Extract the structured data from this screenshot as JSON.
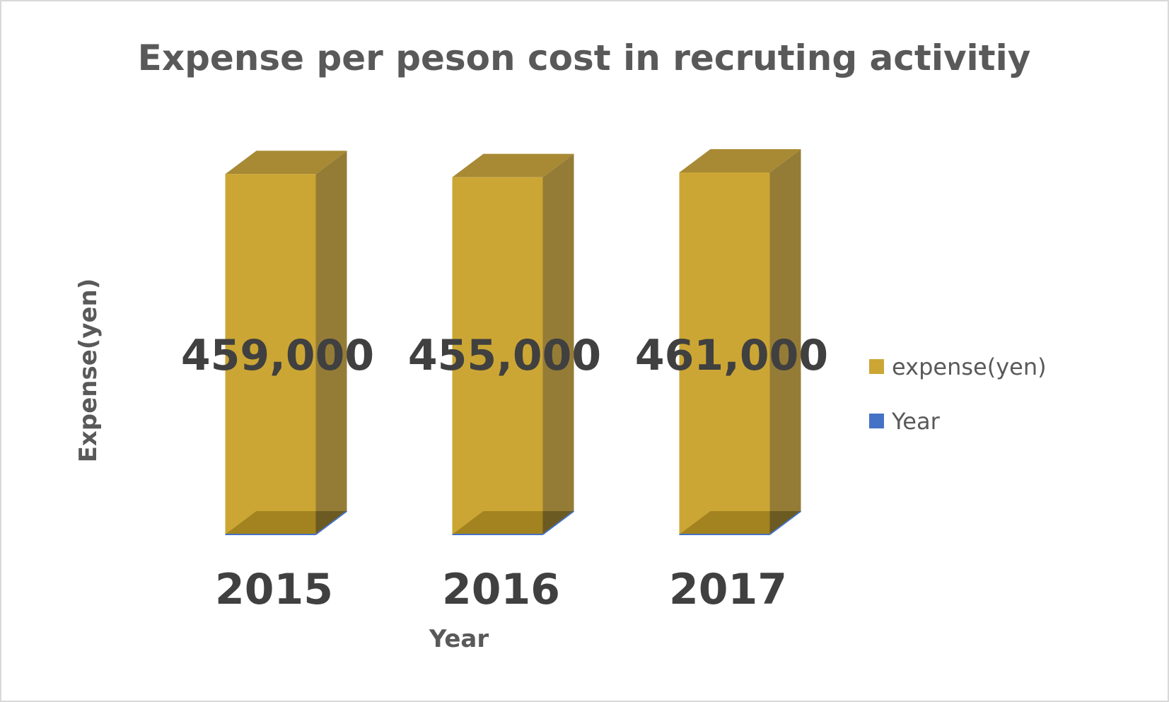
{
  "chart_data": {
    "type": "bar",
    "title": "Expense per peson cost in recruting activitiy",
    "xlabel": "Year",
    "ylabel": "Expense(yen)",
    "categories": [
      "2015",
      "2016",
      "2017"
    ],
    "series": [
      {
        "name": "expense(yen)",
        "color": "#CCA634",
        "values": [
          459000,
          455000,
          461000
        ],
        "data_labels": [
          "459,000",
          "455,000",
          "461,000"
        ]
      },
      {
        "name": "Year",
        "color": "#4472C4",
        "values": [
          0,
          0,
          0
        ]
      }
    ],
    "style": "3d-column",
    "grid": false,
    "legend_position": "right"
  }
}
